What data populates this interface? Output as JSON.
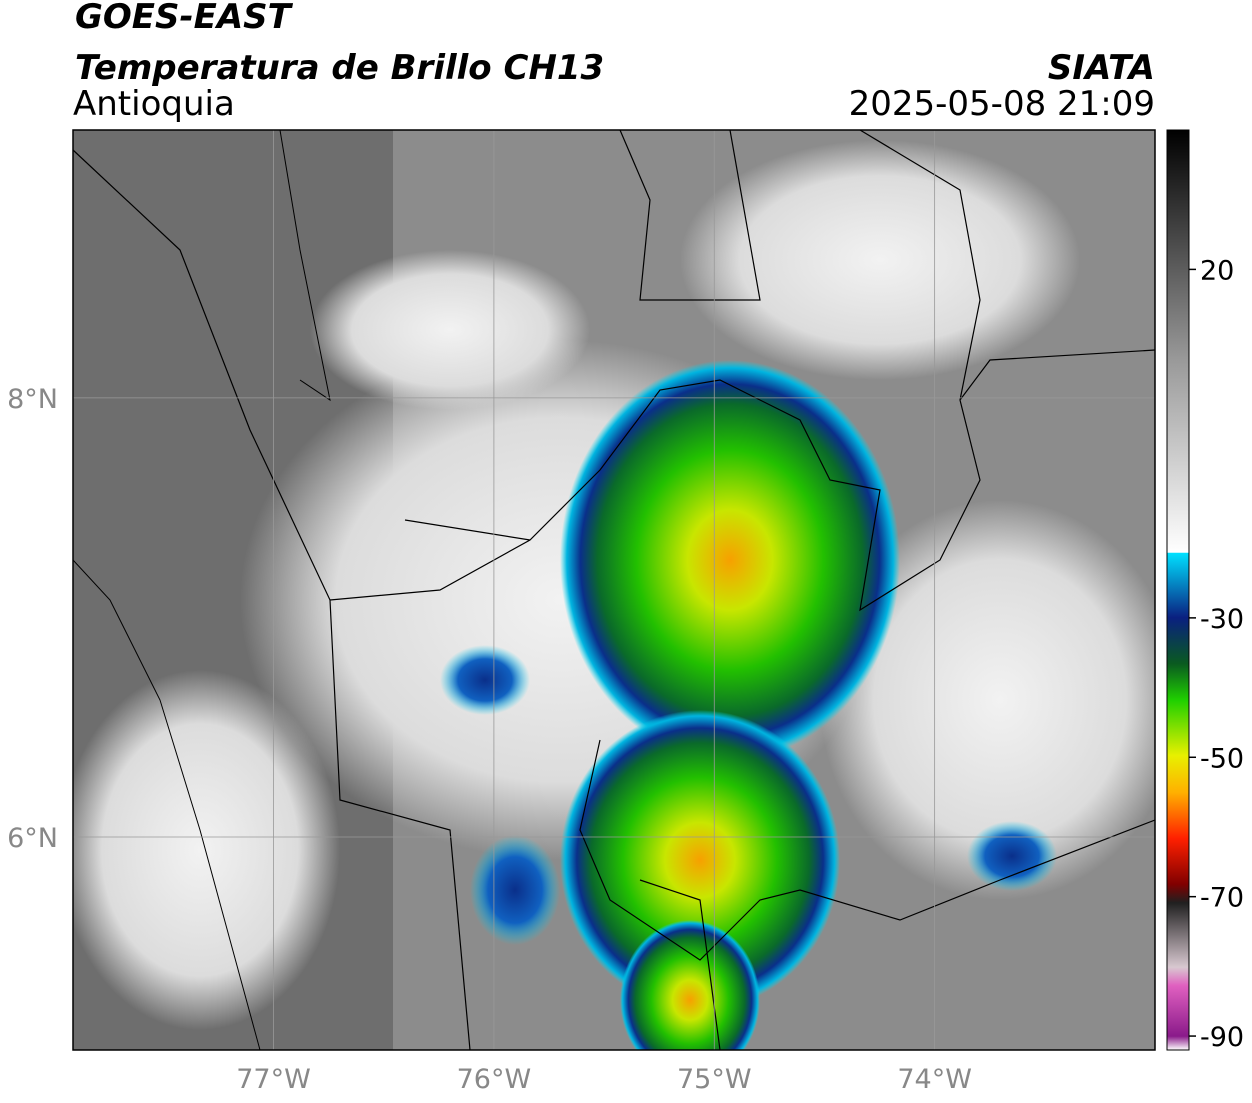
{
  "header": {
    "satellite": "GOES-EAST",
    "product": "Temperatura de Brillo CH13",
    "region": "Antioquia",
    "agency": "SIATA",
    "datetime": "2025-05-08 21:09"
  },
  "map": {
    "xlim": [
      -77.91,
      -73.0
    ],
    "ylim": [
      5.03,
      9.22
    ],
    "xticks": [
      {
        "value": -77,
        "label": "77°W"
      },
      {
        "value": -76,
        "label": "76°W"
      },
      {
        "value": -75,
        "label": "75°W"
      },
      {
        "value": -74,
        "label": "74°W"
      }
    ],
    "yticks": [
      {
        "value": 8,
        "label": "8°N"
      },
      {
        "value": 6,
        "label": "6°N"
      }
    ]
  },
  "colorbar": {
    "range": [
      -92,
      40
    ],
    "ticks": [
      20,
      -30,
      -50,
      -70,
      -90
    ]
  }
}
